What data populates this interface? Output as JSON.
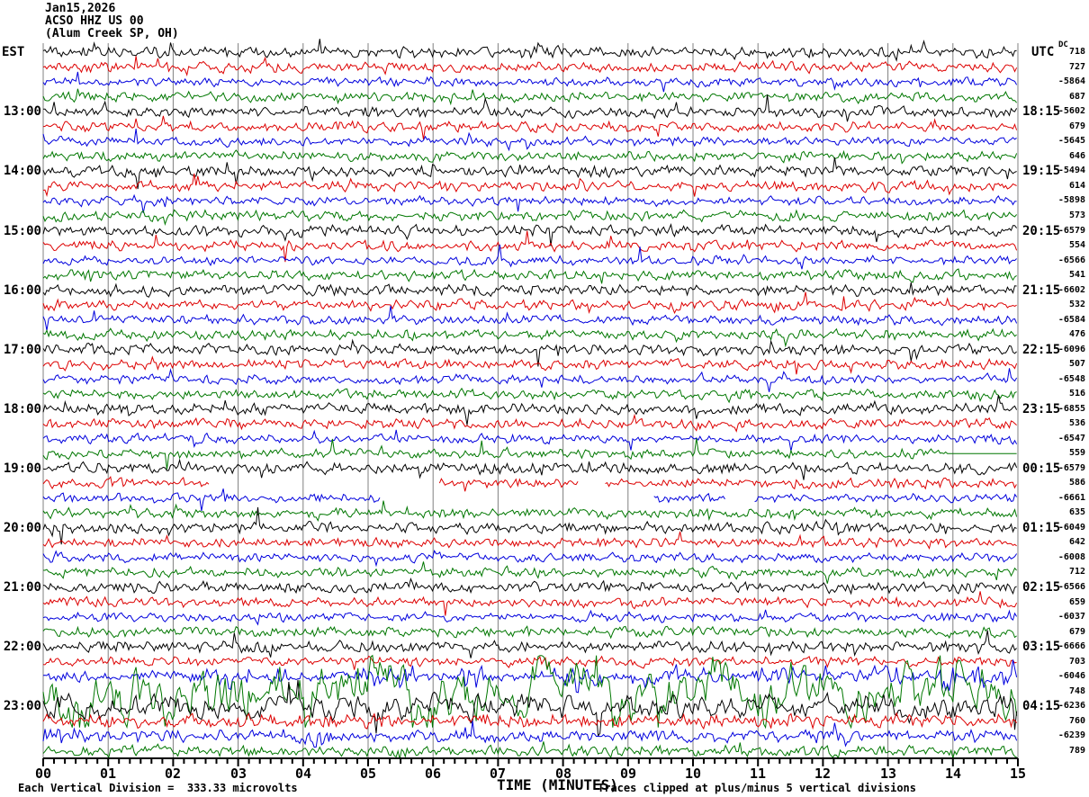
{
  "header": {
    "date": "Jan15,2026",
    "station": "ACSO HHZ US 00",
    "location": "(Alum Creek SP, OH)"
  },
  "axes": {
    "left_label": "EST",
    "right_label": "UTC",
    "dc_label": "DC",
    "x_ticks": [
      "00",
      "01",
      "02",
      "03",
      "04",
      "05",
      "06",
      "07",
      "08",
      "09",
      "10",
      "11",
      "12",
      "13",
      "14",
      "15"
    ]
  },
  "footer": {
    "left": "Each Vertical Division =  333.33 microvolts",
    "x_title": "TIME (MINUTES)",
    "right": "Traces clipped at plus/minus 5 vertical divisions"
  },
  "palette": {
    "black": "#000000",
    "red": "#dd0000",
    "blue": "#0000dd",
    "green": "#007700",
    "grid": "#808080"
  },
  "chart_data": {
    "type": "line",
    "title": "ACSO HHZ US 00 (Alum Creek SP, OH) helicorder, Jan15,2026",
    "xlabel": "TIME (MINUTES)",
    "xlim": [
      0,
      15
    ],
    "minutes_per_line": 15,
    "grid": "vertical lines at every minute",
    "legend_position": "none",
    "clip_note": "Traces clipped at plus/minus 5 vertical divisions",
    "vertical_division": "333.33 microvolts",
    "color_cycle": [
      "black",
      "red",
      "blue",
      "green"
    ],
    "est_hour_labels": [
      "13:00",
      "14:00",
      "15:00",
      "16:00",
      "17:00",
      "18:00",
      "19:00",
      "20:00",
      "21:00",
      "22:00",
      "23:00"
    ],
    "utc_hour_labels": [
      "18:15",
      "19:15",
      "20:15",
      "21:15",
      "22:15",
      "23:15",
      "00:15",
      "01:15",
      "02:15",
      "03:15",
      "04:15"
    ],
    "rows": [
      {
        "c": "black",
        "dc": 718,
        "est": null,
        "utc": null,
        "amp": 4.8
      },
      {
        "c": "red",
        "dc": 727,
        "est": null,
        "utc": null,
        "amp": 4.4
      },
      {
        "c": "blue",
        "dc": -5864,
        "est": null,
        "utc": null,
        "amp": 4.0
      },
      {
        "c": "green",
        "dc": 687,
        "est": null,
        "utc": null,
        "amp": 4.4
      },
      {
        "c": "black",
        "dc": -5602,
        "est": "13:00",
        "utc": "18:15",
        "amp": 4.8
      },
      {
        "c": "red",
        "dc": 679,
        "est": null,
        "utc": null,
        "amp": 4.4
      },
      {
        "c": "blue",
        "dc": -5645,
        "est": null,
        "utc": null,
        "amp": 4.0
      },
      {
        "c": "green",
        "dc": 646,
        "est": null,
        "utc": null,
        "amp": 4.4
      },
      {
        "c": "black",
        "dc": -5494,
        "est": "14:00",
        "utc": "19:15",
        "amp": 4.8
      },
      {
        "c": "red",
        "dc": 614,
        "est": null,
        "utc": null,
        "amp": 4.4
      },
      {
        "c": "blue",
        "dc": -5898,
        "est": null,
        "utc": null,
        "amp": 4.0
      },
      {
        "c": "green",
        "dc": 573,
        "est": null,
        "utc": null,
        "amp": 4.4
      },
      {
        "c": "black",
        "dc": -6579,
        "est": "15:00",
        "utc": "20:15",
        "amp": 4.8
      },
      {
        "c": "red",
        "dc": 554,
        "est": null,
        "utc": null,
        "amp": 4.4
      },
      {
        "c": "blue",
        "dc": -6566,
        "est": null,
        "utc": null,
        "amp": 4.0
      },
      {
        "c": "green",
        "dc": 541,
        "est": null,
        "utc": null,
        "amp": 4.4
      },
      {
        "c": "black",
        "dc": -6602,
        "est": "16:00",
        "utc": "21:15",
        "amp": 4.8
      },
      {
        "c": "red",
        "dc": 532,
        "est": null,
        "utc": null,
        "amp": 4.4
      },
      {
        "c": "blue",
        "dc": -6584,
        "est": null,
        "utc": null,
        "amp": 4.0
      },
      {
        "c": "green",
        "dc": 476,
        "est": null,
        "utc": null,
        "amp": 4.4
      },
      {
        "c": "black",
        "dc": -6096,
        "est": "17:00",
        "utc": "22:15",
        "amp": 4.8
      },
      {
        "c": "red",
        "dc": 507,
        "est": null,
        "utc": null,
        "amp": 4.4
      },
      {
        "c": "blue",
        "dc": -6548,
        "est": null,
        "utc": null,
        "amp": 4.0
      },
      {
        "c": "green",
        "dc": 516,
        "est": null,
        "utc": null,
        "amp": 4.4
      },
      {
        "c": "black",
        "dc": -6855,
        "est": "18:00",
        "utc": "23:15",
        "amp": 4.8
      },
      {
        "c": "red",
        "dc": 536,
        "est": null,
        "utc": null,
        "amp": 4.4
      },
      {
        "c": "blue",
        "dc": -6547,
        "est": null,
        "utc": null,
        "amp": 4.0
      },
      {
        "c": "green",
        "dc": 559,
        "est": null,
        "utc": null,
        "amp": 4.4,
        "flat": [
          [
            13.9,
            15
          ]
        ]
      },
      {
        "c": "black",
        "dc": -6579,
        "est": "19:00",
        "utc": "00:15",
        "amp": 4.8
      },
      {
        "c": "red",
        "dc": 586,
        "est": null,
        "utc": null,
        "amp": 4.4,
        "seg": [
          [
            0,
            2.55
          ],
          [
            6.1,
            8.25
          ],
          [
            8.65,
            15
          ]
        ]
      },
      {
        "c": "blue",
        "dc": -6661,
        "est": null,
        "utc": null,
        "amp": 4.0,
        "seg": [
          [
            0,
            5.2
          ],
          [
            9.4,
            10.5
          ],
          [
            10.95,
            15
          ]
        ]
      },
      {
        "c": "green",
        "dc": 635,
        "est": null,
        "utc": null,
        "amp": 4.4
      },
      {
        "c": "black",
        "dc": -6049,
        "est": "20:00",
        "utc": "01:15",
        "amp": 4.8
      },
      {
        "c": "red",
        "dc": 642,
        "est": null,
        "utc": null,
        "amp": 4.4
      },
      {
        "c": "blue",
        "dc": -6008,
        "est": null,
        "utc": null,
        "amp": 4.0
      },
      {
        "c": "green",
        "dc": 712,
        "est": null,
        "utc": null,
        "amp": 4.4
      },
      {
        "c": "black",
        "dc": -6566,
        "est": "21:00",
        "utc": "02:15",
        "amp": 4.8
      },
      {
        "c": "red",
        "dc": 659,
        "est": null,
        "utc": null,
        "amp": 4.4
      },
      {
        "c": "blue",
        "dc": -6037,
        "est": null,
        "utc": null,
        "amp": 4.0
      },
      {
        "c": "green",
        "dc": 679,
        "est": null,
        "utc": null,
        "amp": 4.4
      },
      {
        "c": "black",
        "dc": -6666,
        "est": "22:00",
        "utc": "03:15",
        "amp": 4.8
      },
      {
        "c": "red",
        "dc": 703,
        "est": null,
        "utc": null,
        "amp": 4.4
      },
      {
        "c": "blue",
        "dc": -6046,
        "est": null,
        "utc": null,
        "amp": 4.5,
        "bursts": [
          [
            2.45,
            3.2,
            2.6
          ],
          [
            3.5,
            3.9,
            2.0
          ],
          [
            4.9,
            5.7,
            2.8
          ],
          [
            6.4,
            6.9,
            2.2
          ],
          [
            7.8,
            8.6,
            3.1
          ],
          [
            9.3,
            9.9,
            2.4
          ],
          [
            10.9,
            11.6,
            2.2
          ],
          [
            12.4,
            13.2,
            2.1
          ],
          [
            13.8,
            15,
            2.9
          ]
        ]
      },
      {
        "c": "green",
        "dc": 748,
        "est": null,
        "utc": null,
        "amp": 26,
        "sm": 0.8,
        "sp": 0.05
      },
      {
        "c": "black",
        "dc": -6236,
        "est": "23:00",
        "utc": "04:15",
        "amp": 11,
        "sm": 0.62,
        "sp": 0.03
      },
      {
        "c": "red",
        "dc": 760,
        "est": null,
        "utc": null,
        "amp": 6.0
      },
      {
        "c": "blue",
        "dc": -6239,
        "est": null,
        "utc": null,
        "amp": 5.2,
        "bursts": [
          [
            0,
            0.6,
            1.8
          ],
          [
            4.0,
            4.5,
            1.6
          ],
          [
            11.8,
            12.4,
            1.6
          ]
        ]
      },
      {
        "c": "green",
        "dc": 789,
        "est": null,
        "utc": null,
        "amp": 5.0
      }
    ]
  }
}
